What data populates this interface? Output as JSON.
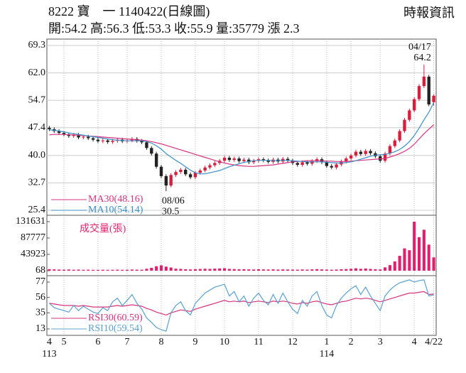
{
  "header": {
    "title": "8222 寶　一 1140422(日線圖)",
    "source": "時報資訊",
    "quote": "開:54.2 高:56.3 低:53.3 收:55.9 量:35779 漲 2.3"
  },
  "chart_data": [
    {
      "type": "candlestick",
      "open": [
        47.4,
        47.0,
        46.5,
        46.0,
        45.6,
        45.2,
        45.5,
        44.8,
        45.0,
        44.6,
        44.2,
        43.8,
        44.0,
        43.6,
        43.9,
        44.2,
        43.8,
        44.0,
        44.4,
        43.9,
        43.5,
        42.0,
        40.5,
        37.0,
        34.5,
        32.0,
        34.8,
        35.6,
        36.2,
        35.0,
        34.2,
        35.4,
        36.0,
        36.8,
        37.4,
        38.0,
        38.6,
        39.4,
        38.8,
        39.2,
        38.5,
        38.9,
        38.2,
        38.6,
        39.0,
        38.7,
        38.3,
        38.9,
        38.4,
        39.1,
        38.6,
        38.0,
        37.5,
        38.2,
        37.8,
        38.5,
        39.0,
        38.2,
        37.2,
        36.8,
        37.6,
        38.4,
        39.2,
        40.0,
        41.0,
        40.4,
        41.2,
        40.6,
        39.8,
        38.6,
        40.5,
        42.5,
        44.0,
        46.5,
        49.5,
        52.0,
        55.0,
        58.5,
        61.0,
        54.2
      ],
      "high": [
        47.9,
        47.5,
        47.0,
        46.5,
        46.1,
        46.0,
        46.0,
        45.5,
        45.5,
        45.1,
        44.7,
        44.5,
        44.5,
        44.4,
        44.7,
        44.7,
        44.5,
        44.9,
        44.9,
        44.4,
        44.0,
        42.5,
        41.0,
        37.5,
        35.0,
        35.3,
        36.1,
        36.7,
        36.7,
        35.5,
        35.9,
        36.5,
        37.3,
        37.9,
        38.5,
        39.1,
        39.9,
        39.9,
        39.7,
        39.7,
        39.4,
        39.4,
        39.1,
        39.5,
        39.5,
        39.2,
        39.4,
        39.4,
        39.6,
        39.6,
        39.1,
        38.5,
        38.7,
        38.7,
        39.0,
        39.5,
        39.5,
        38.7,
        37.7,
        38.1,
        38.9,
        39.7,
        40.5,
        41.5,
        41.5,
        41.7,
        41.7,
        41.1,
        40.3,
        41.0,
        43.0,
        44.5,
        47.0,
        50.0,
        52.5,
        55.5,
        59.0,
        64.2,
        61.5,
        56.3
      ],
      "low": [
        46.5,
        46.0,
        45.5,
        45.1,
        44.7,
        44.7,
        44.3,
        44.3,
        44.1,
        43.7,
        43.3,
        43.3,
        43.1,
        43.1,
        43.4,
        43.3,
        43.3,
        43.5,
        43.4,
        43.0,
        41.5,
        40.0,
        36.5,
        34.0,
        30.5,
        31.5,
        34.3,
        35.1,
        34.5,
        33.7,
        33.7,
        34.9,
        35.5,
        36.3,
        36.9,
        37.5,
        38.1,
        38.3,
        38.3,
        38.0,
        38.0,
        37.7,
        37.7,
        38.1,
        38.2,
        37.8,
        37.8,
        37.9,
        37.9,
        38.1,
        37.5,
        37.0,
        37.0,
        37.3,
        37.3,
        38.0,
        37.7,
        36.7,
        36.3,
        36.3,
        37.1,
        37.9,
        38.7,
        39.5,
        39.9,
        39.9,
        40.1,
        39.3,
        38.1,
        38.1,
        40.0,
        42.0,
        43.5,
        46.0,
        49.0,
        51.5,
        54.5,
        58.0,
        53.1,
        53.3
      ],
      "close": [
        47.0,
        46.5,
        46.0,
        45.6,
        45.2,
        45.5,
        44.8,
        45.0,
        44.6,
        44.2,
        43.8,
        44.0,
        43.6,
        43.9,
        44.2,
        43.8,
        44.0,
        44.4,
        43.9,
        43.5,
        42.0,
        40.5,
        37.0,
        34.5,
        32.0,
        34.8,
        35.6,
        36.2,
        35.0,
        34.2,
        35.4,
        36.0,
        36.8,
        37.4,
        38.0,
        38.6,
        39.4,
        38.8,
        39.2,
        38.5,
        38.9,
        38.2,
        38.6,
        39.0,
        38.7,
        38.3,
        38.9,
        38.4,
        39.1,
        38.6,
        38.0,
        37.5,
        38.2,
        37.8,
        38.5,
        39.0,
        38.2,
        37.2,
        36.8,
        37.6,
        38.4,
        39.2,
        40.0,
        41.0,
        40.4,
        41.2,
        40.6,
        39.8,
        38.6,
        40.5,
        42.5,
        44.0,
        46.5,
        49.5,
        52.0,
        55.0,
        58.5,
        61.0,
        53.6,
        55.9
      ],
      "up_color": "#d81e3c",
      "down_color": "#222222",
      "series": [
        {
          "name": "MA30(48.16)",
          "color": "#d6337f",
          "values": [
            45.5,
            45.6,
            45.6,
            45.6,
            45.5,
            45.5,
            45.4,
            45.3,
            45.2,
            45.1,
            45.0,
            44.9,
            44.8,
            44.7,
            44.6,
            44.5,
            44.4,
            44.3,
            44.2,
            44.1,
            43.9,
            43.7,
            43.4,
            43.1,
            42.7,
            42.3,
            41.9,
            41.5,
            41.1,
            40.7,
            40.3,
            39.9,
            39.5,
            39.1,
            38.7,
            38.3,
            38.0,
            37.7,
            37.5,
            37.3,
            37.2,
            37.1,
            37.1,
            37.2,
            37.3,
            37.4,
            37.5,
            37.7,
            37.9,
            38.1,
            38.3,
            38.4,
            38.5,
            38.6,
            38.6,
            38.6,
            38.6,
            38.5,
            38.5,
            38.4,
            38.4,
            38.4,
            38.5,
            38.6,
            38.7,
            38.8,
            38.9,
            39.0,
            39.1,
            39.2,
            39.6,
            40.0,
            40.5,
            41.1,
            41.9,
            43.0,
            44.4,
            45.8,
            47.0,
            48.2
          ]
        },
        {
          "name": "MA10(54.14)",
          "color": "#3b8fc6",
          "values": [
            46.8,
            46.7,
            46.5,
            46.3,
            46.0,
            45.8,
            45.6,
            45.4,
            45.2,
            45.0,
            44.8,
            44.6,
            44.4,
            44.2,
            44.1,
            44.0,
            43.9,
            43.9,
            43.9,
            43.9,
            43.7,
            43.3,
            42.6,
            41.7,
            40.5,
            39.6,
            38.7,
            37.9,
            37.0,
            36.1,
            35.4,
            35.1,
            35.1,
            35.4,
            35.7,
            36.0,
            36.5,
            37.0,
            37.4,
            37.8,
            38.2,
            38.4,
            38.6,
            38.7,
            38.7,
            38.7,
            38.6,
            38.6,
            38.7,
            38.7,
            38.6,
            38.5,
            38.4,
            38.3,
            38.3,
            38.3,
            38.3,
            38.2,
            38.1,
            38.0,
            38.0,
            38.1,
            38.3,
            38.6,
            39.0,
            39.4,
            39.8,
            40.1,
            40.2,
            40.3,
            40.6,
            41.0,
            41.6,
            42.5,
            43.7,
            45.3,
            47.3,
            49.5,
            51.5,
            54.1
          ]
        }
      ],
      "ylim": [
        25.4,
        69.3
      ],
      "yticks": [
        69.3,
        {
          "value": 62,
          "label": "62.0"
        },
        54.7,
        47.4,
        {
          "value": 40,
          "label": "40.0"
        },
        32.7,
        25.4
      ],
      "grid": true,
      "legend": "lower-left",
      "annotations": [
        {
          "date": "04/17",
          "value": 64.2
        },
        {
          "date": "08/06",
          "value": 30.5
        }
      ]
    },
    {
      "type": "bar",
      "series": [
        {
          "name": "成交量(張)",
          "color": "#e0206e",
          "values": [
            4200,
            3600,
            3100,
            2800,
            3300,
            2600,
            3000,
            2500,
            2700,
            2400,
            2200,
            2600,
            2300,
            2500,
            2800,
            2400,
            2600,
            3200,
            2900,
            2700,
            5200,
            7800,
            12000,
            14500,
            11000,
            8600,
            5400,
            4800,
            3900,
            3500,
            4100,
            4600,
            5200,
            4800,
            5600,
            6100,
            6800,
            4900,
            4400,
            3800,
            4100,
            3600,
            3300,
            3900,
            3500,
            3200,
            3700,
            3100,
            3600,
            3300,
            3000,
            2800,
            3400,
            2900,
            3600,
            4200,
            3500,
            3000,
            2700,
            3100,
            3800,
            4400,
            5200,
            6400,
            5100,
            5800,
            4700,
            3900,
            3400,
            9000,
            15000,
            25000,
            40000,
            60000,
            55000,
            131631,
            90000,
            110000,
            70000,
            35779
          ]
        }
      ],
      "ylim": [
        68,
        131631
      ],
      "yticks": [
        131631,
        87777,
        43923,
        68
      ],
      "legend": "upper-left"
    },
    {
      "type": "line",
      "categories": [
        "4",
        null,
        null,
        "5",
        null,
        null,
        null,
        null,
        null,
        null,
        "6",
        null,
        null,
        null,
        null,
        null,
        "7",
        null,
        null,
        null,
        null,
        null,
        null,
        "8",
        null,
        null,
        null,
        null,
        null,
        null,
        "9",
        null,
        null,
        null,
        null,
        null,
        "10",
        null,
        null,
        null,
        null,
        null,
        null,
        "11",
        null,
        null,
        null,
        null,
        null,
        null,
        "12",
        null,
        null,
        null,
        null,
        null,
        null,
        "1",
        null,
        null,
        null,
        null,
        "2",
        null,
        null,
        null,
        null,
        null,
        "3",
        null,
        null,
        null,
        null,
        null,
        null,
        "4",
        null,
        null,
        null,
        "4/22"
      ],
      "year_categories": [
        "113",
        null,
        null,
        null,
        null,
        null,
        null,
        null,
        null,
        null,
        null,
        null,
        null,
        null,
        null,
        null,
        null,
        null,
        null,
        null,
        null,
        null,
        null,
        null,
        null,
        null,
        null,
        null,
        null,
        null,
        null,
        null,
        null,
        null,
        null,
        null,
        null,
        null,
        null,
        null,
        null,
        null,
        null,
        null,
        null,
        null,
        null,
        null,
        null,
        null,
        null,
        null,
        null,
        null,
        null,
        null,
        null,
        "114",
        null,
        null,
        null,
        null,
        null,
        null,
        null,
        null,
        null,
        null,
        null,
        null,
        null,
        null,
        null,
        null,
        null,
        null,
        null,
        null,
        null,
        null
      ],
      "series": [
        {
          "name": "RSI30(60.59)",
          "color": "#d6337f",
          "values": [
            48,
            47,
            46,
            45,
            45,
            45,
            44,
            45,
            44,
            43,
            43,
            43,
            43,
            44,
            45,
            44,
            45,
            46,
            45,
            44,
            41,
            39,
            36,
            34,
            32,
            35,
            37,
            39,
            38,
            37,
            40,
            42,
            44,
            46,
            48,
            50,
            52,
            50,
            51,
            50,
            51,
            49,
            50,
            51,
            50,
            49,
            51,
            50,
            51,
            50,
            48,
            47,
            49,
            48,
            50,
            51,
            49,
            47,
            46,
            48,
            50,
            51,
            53,
            55,
            54,
            55,
            54,
            52,
            50,
            52,
            54,
            56,
            58,
            60,
            62,
            62,
            63,
            64,
            60,
            60.6
          ]
        },
        {
          "name": "RSI10(59.54)",
          "color": "#5aa0d0",
          "values": [
            48,
            42,
            40,
            38,
            36,
            45,
            38,
            44,
            40,
            36,
            34,
            42,
            38,
            50,
            55,
            45,
            52,
            60,
            48,
            40,
            28,
            22,
            15,
            12,
            10,
            35,
            45,
            50,
            38,
            32,
            48,
            55,
            62,
            66,
            70,
            72,
            74,
            58,
            64,
            50,
            58,
            44,
            55,
            62,
            52,
            46,
            60,
            48,
            62,
            50,
            40,
            34,
            52,
            44,
            58,
            64,
            45,
            32,
            28,
            45,
            55,
            62,
            68,
            72,
            60,
            70,
            58,
            48,
            38,
            58,
            66,
            72,
            76,
            78,
            80,
            77,
            79,
            80,
            58,
            59.5
          ]
        }
      ],
      "ylim": [
        13,
        77
      ],
      "yticks": [
        77,
        56,
        35,
        13
      ],
      "legend": "lower-left"
    }
  ]
}
